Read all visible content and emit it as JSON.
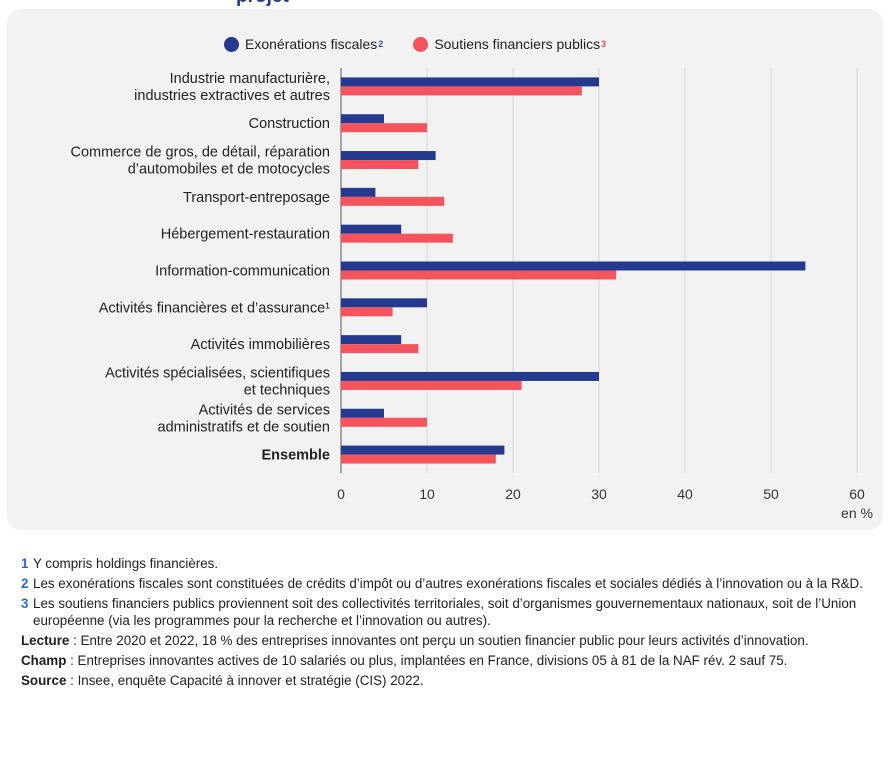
{
  "title_fragment": "projet",
  "legend": {
    "items": [
      {
        "label": "Exonérations fiscales",
        "sup": "2",
        "color": "#233a8f"
      },
      {
        "label": "Soutiens financiers publics",
        "sup": "3",
        "color": "#f5545d"
      }
    ]
  },
  "chart_data": {
    "type": "bar",
    "orientation": "horizontal",
    "categories": [
      [
        "Industrie manufacturière,",
        "industries extractives et autres"
      ],
      [
        "Construction"
      ],
      [
        "Commerce de gros, de détail, réparation",
        "d’automobiles et de motocycles"
      ],
      [
        "Transport-entreposage"
      ],
      [
        "Hébergement-restauration"
      ],
      [
        "Information-communication"
      ],
      [
        "Activités financières et d’assurance¹"
      ],
      [
        "Activités immobilières"
      ],
      [
        "Activités spécialisées, scientifiques",
        "et techniques"
      ],
      [
        "Activités de services",
        "administratifs et de soutien"
      ],
      [
        "Ensemble"
      ]
    ],
    "bold_categories": [
      10
    ],
    "series": [
      {
        "name": "Exonérations fiscales",
        "color": "#233a8f",
        "values": [
          30,
          5,
          11,
          4,
          7,
          54,
          10,
          7,
          30,
          5,
          19
        ]
      },
      {
        "name": "Soutiens financiers publics",
        "color": "#f5545d",
        "values": [
          28,
          10,
          9,
          12,
          13,
          32,
          6,
          9,
          21,
          10,
          18
        ]
      }
    ],
    "xlim": [
      0,
      60
    ],
    "xticks": [
      0,
      10,
      20,
      30,
      40,
      50,
      60
    ],
    "xunit": "en %",
    "grid": true
  },
  "notes": [
    {
      "num": "1",
      "text": "Y compris holdings financières."
    },
    {
      "num": "2",
      "text": "Les exonérations fiscales sont constituées de crédits d’impôt ou d’autres exonérations fiscales et sociales dédiés à l’innovation ou à la R&D."
    },
    {
      "num": "3",
      "text": "Les soutiens financiers publics proviennent soit des collectivités territoriales, soit d’organismes gouvernementaux nationaux, soit de l’Union européenne (via les programmes pour la recherche et l’innovation ou autres)."
    }
  ],
  "lecture": {
    "label": "Lecture",
    "text": " : Entre 2020 et 2022, 18 % des entreprises innovantes ont perçu un soutien financier public pour leurs activités d’innovation."
  },
  "champ": {
    "label": "Champ",
    "text": " : Entreprises innovantes actives de 10 salariés ou plus, implantées en France, divisions 05 à 81 de la NAF rév. 2 sauf 75."
  },
  "source": {
    "label": "Source",
    "text": " : Insee, enquête Capacité à innover et stratégie (CIS) 2022."
  }
}
